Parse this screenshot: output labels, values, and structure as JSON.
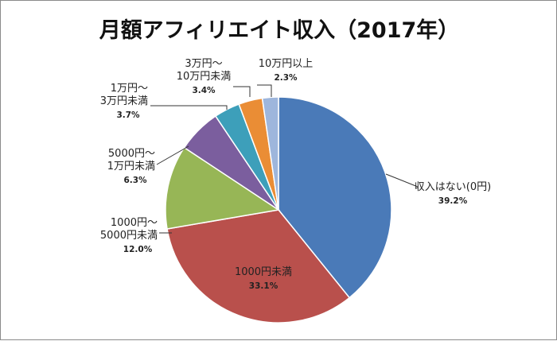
{
  "chart_data": {
    "type": "pie",
    "title": "月額アフィリエイト収入（2017年）",
    "slices": [
      {
        "label": "収入はない(0円)",
        "value": 39.2,
        "value_label": "39.2%",
        "color": "#4a7ab8"
      },
      {
        "label": "1000円未満",
        "value": 33.1,
        "value_label": "33.1%",
        "color": "#b9504c"
      },
      {
        "label": "1000円～ 5000円未満",
        "value": 12.0,
        "value_label": "12.0%",
        "color": "#97b656"
      },
      {
        "label": "5000円～ 1万円未満",
        "value": 6.3,
        "value_label": "6.3%",
        "color": "#7b5e9e"
      },
      {
        "label": "1万円～ 3万円未満",
        "value": 3.7,
        "value_label": "3.7%",
        "color": "#3d9fba"
      },
      {
        "label": "3万円～ 10万円未満",
        "value": 3.4,
        "value_label": "3.4%",
        "color": "#ea8d35"
      },
      {
        "label": "10万円以上",
        "value": 2.3,
        "value_label": "2.3%",
        "color": "#9eb6dc"
      }
    ],
    "label_lines": [
      [
        "収入はない(0円)"
      ],
      [
        "1000円未満"
      ],
      [
        "1000円～",
        "5000円未満"
      ],
      [
        "5000円～",
        "1万円未満"
      ],
      [
        "1万円～",
        "3万円未満"
      ],
      [
        "3万円～",
        "10万円未満"
      ],
      [
        "10万円以上"
      ]
    ],
    "start_angle": "12 o'clock",
    "direction": "clockwise"
  }
}
